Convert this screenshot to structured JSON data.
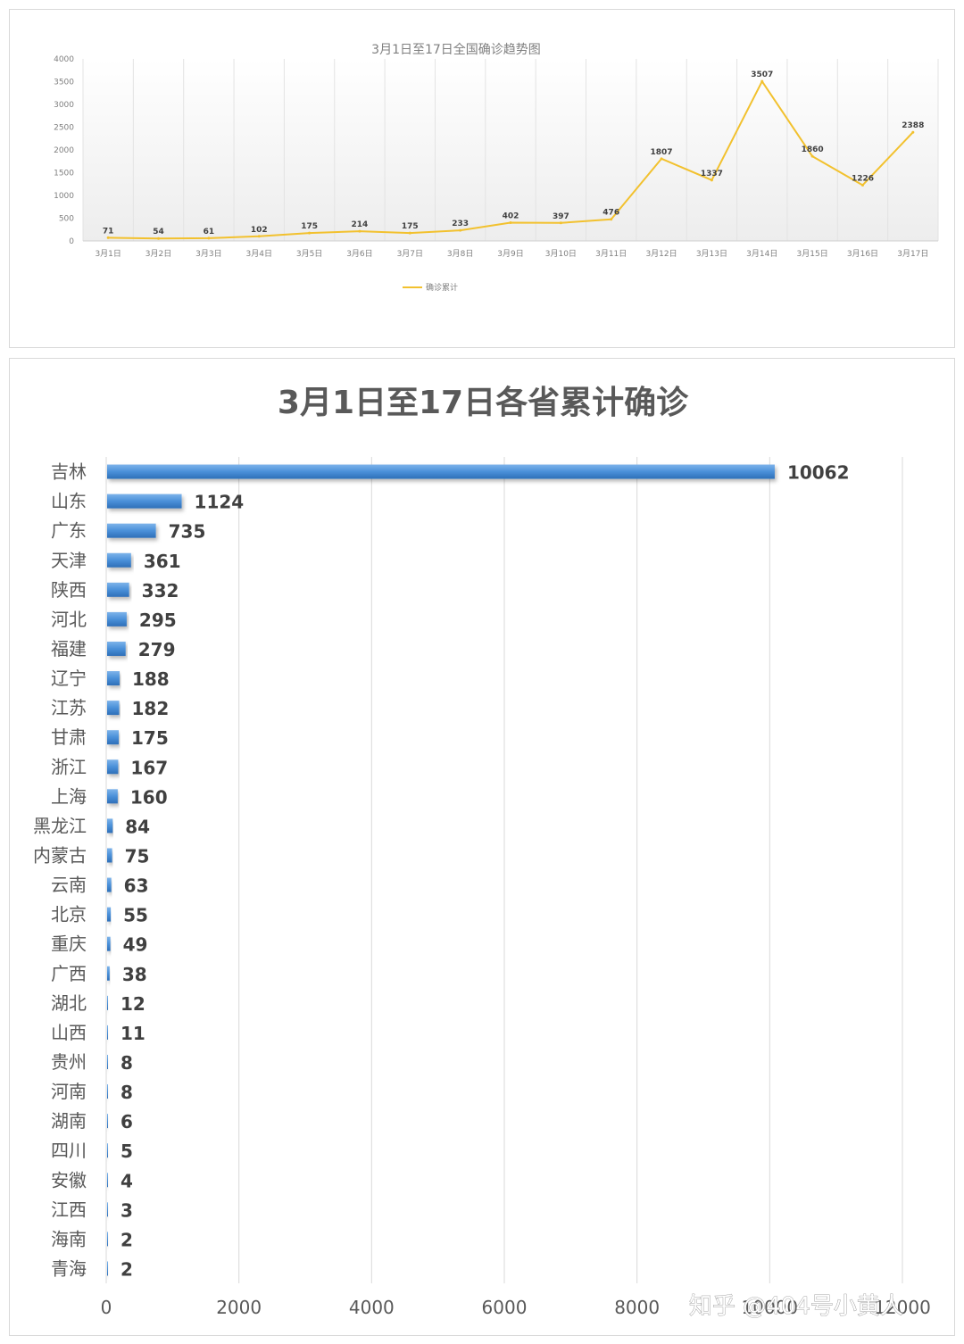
{
  "chart_data": [
    {
      "type": "line",
      "title": "3月1日至17日全国确诊趋势图",
      "categories": [
        "3月1日",
        "3月2日",
        "3月3日",
        "3月4日",
        "3月5日",
        "3月6日",
        "3月7日",
        "3月8日",
        "3月9日",
        "3月10日",
        "3月11日",
        "3月12日",
        "3月13日",
        "3月14日",
        "3月15日",
        "3月16日",
        "3月17日"
      ],
      "series": [
        {
          "name": "确诊累计",
          "values": [
            71,
            54,
            61,
            102,
            175,
            214,
            175,
            233,
            402,
            397,
            476,
            1807,
            1337,
            3507,
            1860,
            1226,
            2388
          ]
        }
      ],
      "yticks": [
        0,
        500,
        1000,
        1500,
        2000,
        2500,
        3000,
        3500,
        4000
      ],
      "ylim": [
        0,
        4000
      ],
      "line_color": "#f2c12e",
      "legend_position": "bottom",
      "data_labels": true,
      "grid": "vertical"
    },
    {
      "type": "bar",
      "orientation": "horizontal",
      "title": "3月1日至17日各省累计确诊",
      "categories": [
        "吉林",
        "山东",
        "广东",
        "天津",
        "陕西",
        "河北",
        "福建",
        "辽宁",
        "江苏",
        "甘肃",
        "浙江",
        "上海",
        "黑龙江",
        "内蒙古",
        "云南",
        "北京",
        "重庆",
        "广西",
        "湖北",
        "山西",
        "贵州",
        "河南",
        "湖南",
        "四川",
        "安徽",
        "江西",
        "海南",
        "青海"
      ],
      "values": [
        10062,
        1124,
        735,
        361,
        332,
        295,
        279,
        188,
        182,
        175,
        167,
        160,
        84,
        75,
        63,
        55,
        49,
        38,
        12,
        11,
        8,
        8,
        6,
        5,
        4,
        3,
        2,
        2
      ],
      "xticks": [
        0,
        2000,
        4000,
        6000,
        8000,
        10000,
        12000
      ],
      "xlim": [
        0,
        12000
      ],
      "bar_color": "#4a90d9",
      "data_labels": true,
      "grid": "vertical"
    }
  ],
  "watermark": "知乎 @404号小黄人"
}
